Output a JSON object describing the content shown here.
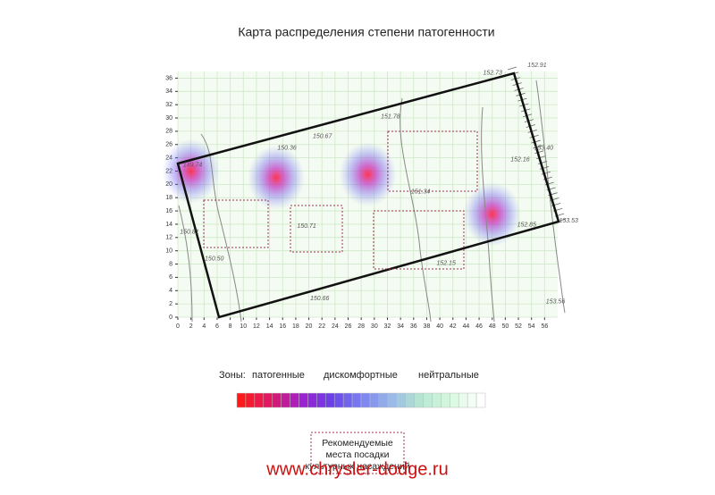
{
  "chart_data": {
    "type": "heatmap",
    "title": "Карта  распределения степени патогенности",
    "xlim": [
      0,
      58
    ],
    "ylim": [
      0,
      37
    ],
    "xticks": [
      0,
      2,
      4,
      6,
      8,
      10,
      12,
      14,
      16,
      18,
      20,
      22,
      24,
      26,
      28,
      30,
      32,
      34,
      36,
      38,
      40,
      42,
      44,
      46,
      48,
      50,
      52,
      54,
      56
    ],
    "yticks": [
      0,
      2,
      4,
      6,
      8,
      10,
      12,
      14,
      16,
      18,
      20,
      22,
      24,
      26,
      28,
      30,
      32,
      34,
      36
    ],
    "grid": true,
    "hotspots": [
      {
        "x": 2,
        "y": 22
      },
      {
        "x": 15,
        "y": 21
      },
      {
        "x": 29,
        "y": 21.5
      },
      {
        "x": 48,
        "y": 15.5
      }
    ],
    "annotations": [
      {
        "text": "149.74",
        "x": 0.8,
        "y": 22.9
      },
      {
        "text": "150.36",
        "x": 15.2,
        "y": 25.5
      },
      {
        "text": "150.67",
        "x": 20.6,
        "y": 27.2
      },
      {
        "text": "151.78",
        "x": 31,
        "y": 30.2
      },
      {
        "text": "152.73",
        "x": 46.6,
        "y": 36.8
      },
      {
        "text": "152.91",
        "x": 53.4,
        "y": 37.9
      },
      {
        "text": "153.40",
        "x": 54.4,
        "y": 25.5
      },
      {
        "text": "152.16",
        "x": 50.8,
        "y": 23.7
      },
      {
        "text": "151.34",
        "x": 35.6,
        "y": 18.9
      },
      {
        "text": "152.85",
        "x": 51.8,
        "y": 13.9
      },
      {
        "text": "153.53",
        "x": 58.2,
        "y": 14.5
      },
      {
        "text": "150.71",
        "x": 18.2,
        "y": 13.7
      },
      {
        "text": "150.81",
        "x": 0.3,
        "y": 12.8
      },
      {
        "text": "150.50",
        "x": 4.1,
        "y": 8.8
      },
      {
        "text": "152.15",
        "x": 39.5,
        "y": 8.1
      },
      {
        "text": "150.66",
        "x": 20.2,
        "y": 2.8
      },
      {
        "text": "153.56",
        "x": 56.2,
        "y": 2.3
      }
    ],
    "legend": {
      "title": "Зоны:",
      "labels": [
        "патогенные",
        "дискомфортные",
        "нейтральные"
      ],
      "colors": [
        "#ff1a1a",
        "#e0186a",
        "#a020d0",
        "#6a40e8",
        "#7a80f0",
        "#9ab8e8",
        "#b8e8d0",
        "#d8f8e0",
        "#ffffff"
      ]
    },
    "recommendation": [
      "Рекомендуемые",
      "места посадки",
      "культурных насаждений"
    ],
    "watermark": "www.chrysler-dodge.ru"
  }
}
